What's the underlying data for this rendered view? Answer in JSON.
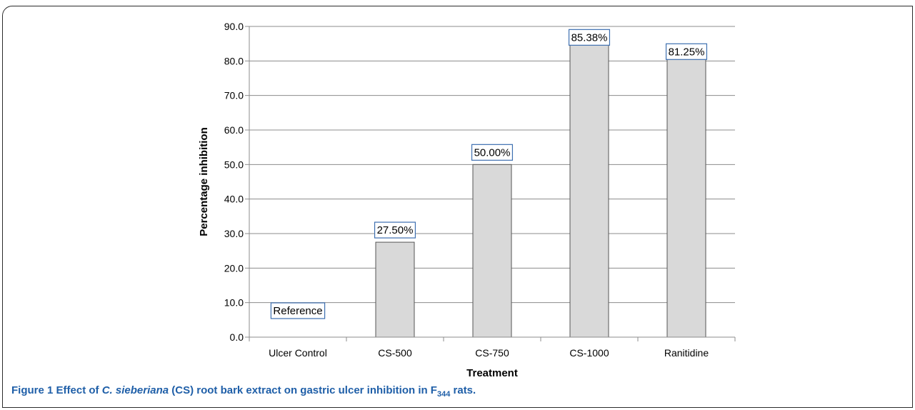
{
  "chart_data": {
    "type": "bar",
    "xlabel": "Treatment",
    "ylabel": "Percentage inhibition",
    "ylim": [
      0,
      90
    ],
    "ytick_step": 10,
    "ytick_labels": [
      "0.0",
      "10.0",
      "20.0",
      "30.0",
      "40.0",
      "50.0",
      "60.0",
      "70.0",
      "80.0",
      "90.0"
    ],
    "categories": [
      "Ulcer Control",
      "CS-500",
      "CS-750",
      "CS-1000",
      "Ranitidine"
    ],
    "values": [
      0,
      27.5,
      50.0,
      85.38,
      81.25
    ],
    "data_labels": [
      "Reference",
      "27.50%",
      "50.00%",
      "85.38%",
      "81.25%"
    ],
    "grid": true,
    "legend": "none",
    "colors": {
      "bar_fill": "#d9d9d9",
      "bar_stroke": "#555555",
      "label_box": "#3d6fb0",
      "grid": "#8c8c8c"
    }
  },
  "caption": {
    "label": "Figure 1",
    "text_before": " Effect of ",
    "italic": "C. sieberiana",
    "text_middle": " (CS) root bark extract on gastric ulcer inhibition in F",
    "subscript": "344",
    "text_after": " rats."
  }
}
